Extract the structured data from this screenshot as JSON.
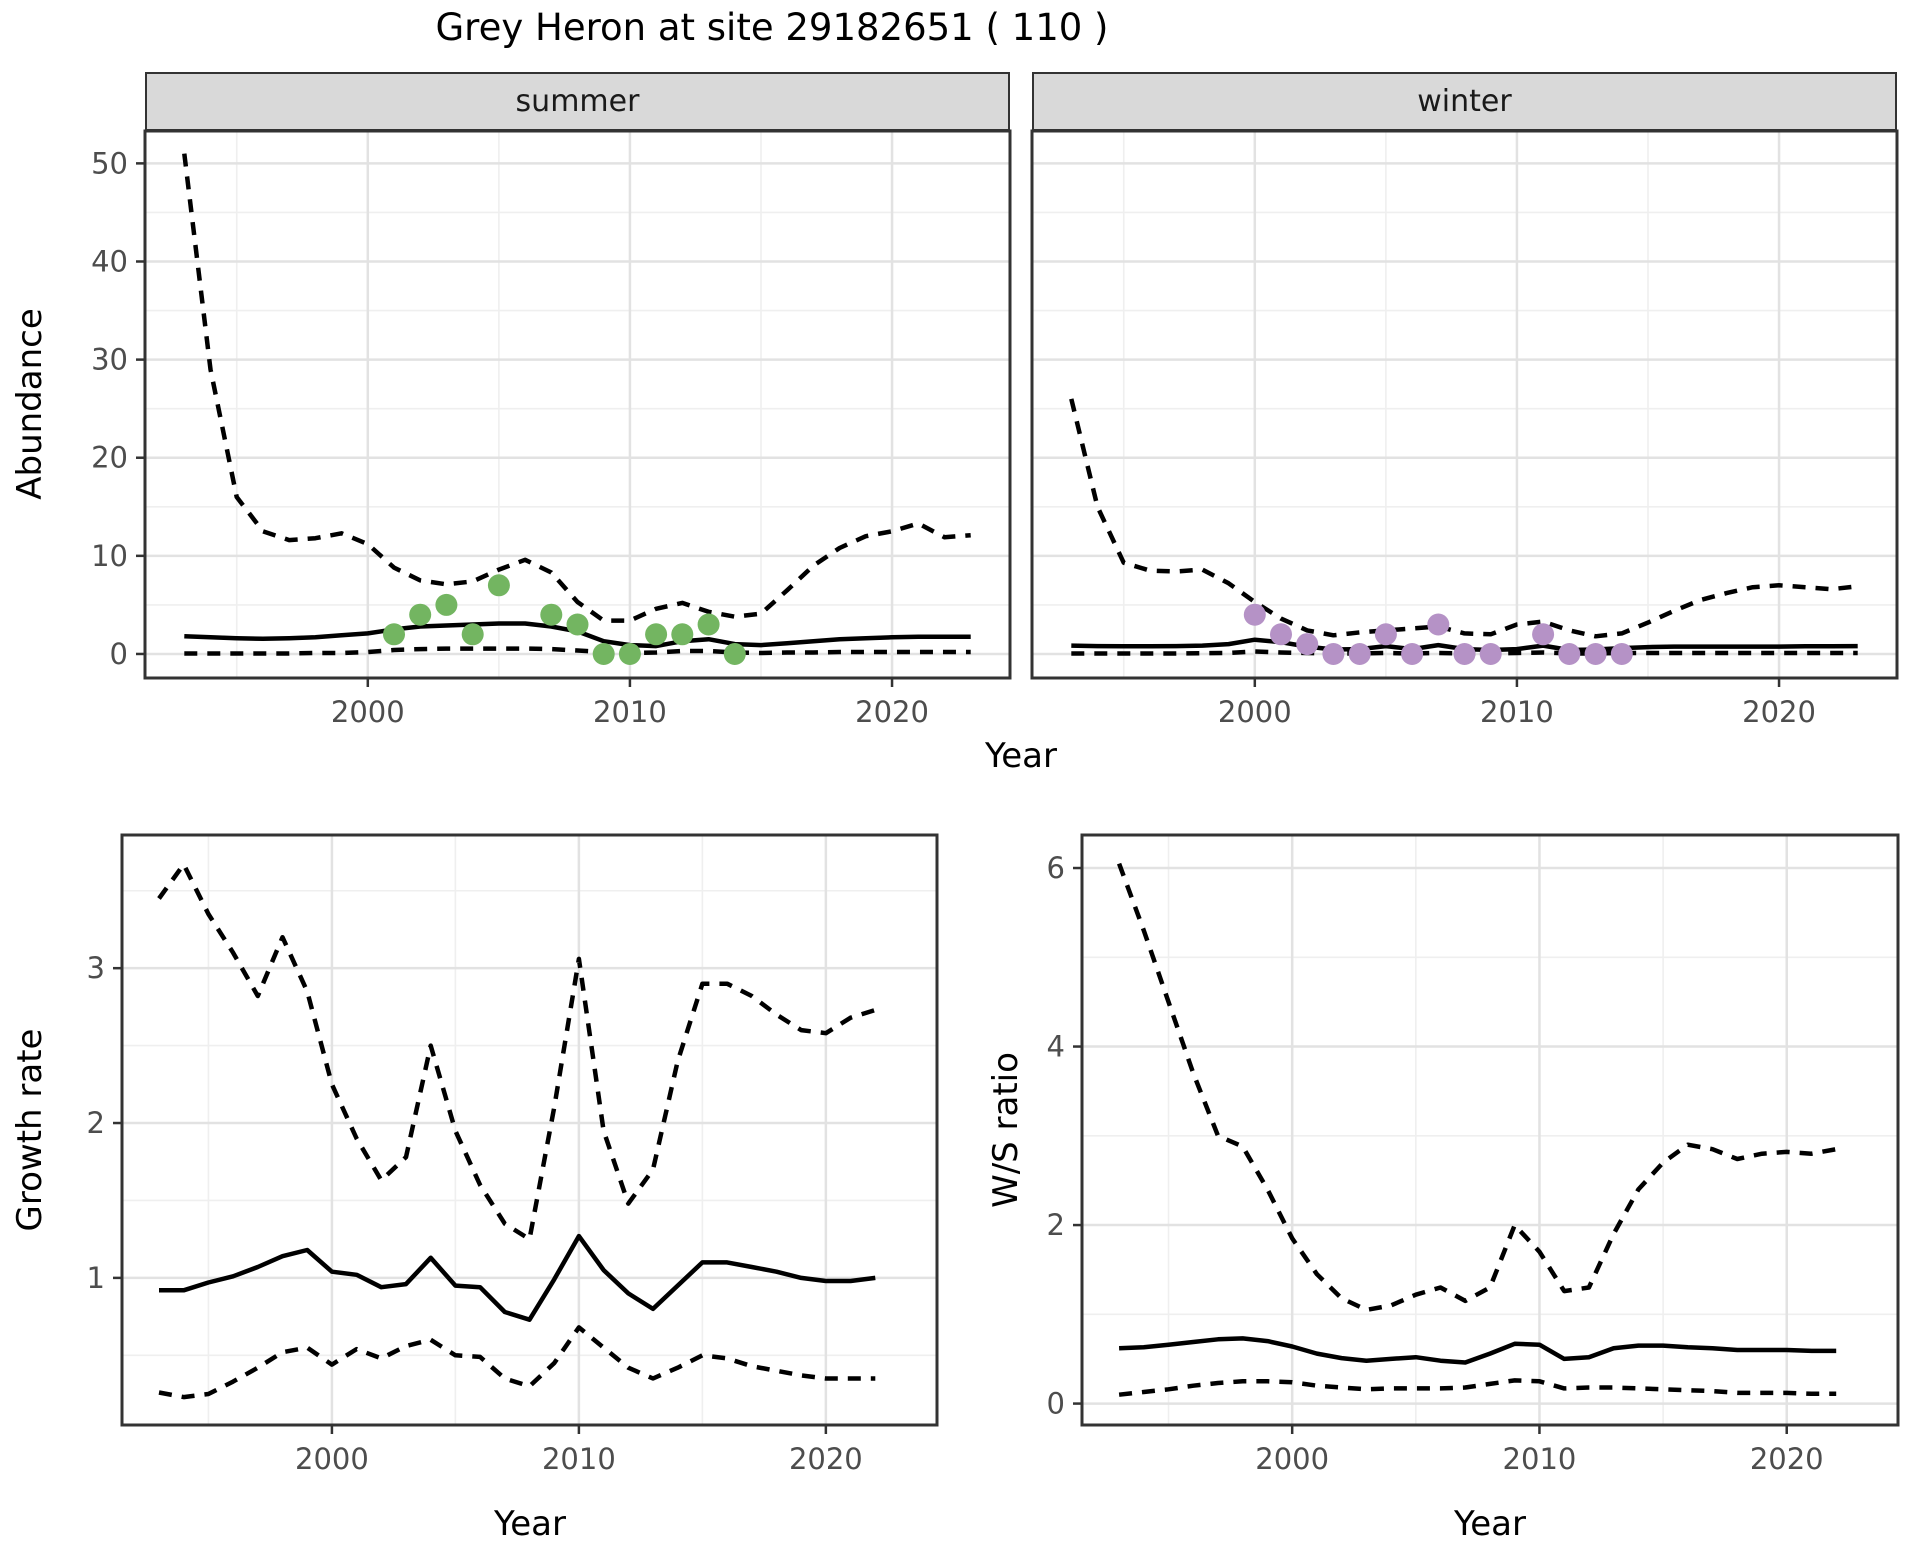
{
  "title": "Grey Heron at site 29182651 ( 110 )",
  "axis_titles": {
    "abundance": "Abundance",
    "year": "Year",
    "growth": "Growth rate",
    "ws": "W/S ratio"
  },
  "colors": {
    "summer_points": "#73b561",
    "winter_points": "#b592c6",
    "line": "#000000",
    "strip_fill": "#d9d9d9",
    "grid_major": "#e2e2e2",
    "grid_minor": "#efefef",
    "border": "#333333",
    "tick_text": "#4d4d4d"
  },
  "chart_data": [
    {
      "id": "abundance-summer",
      "type": "line",
      "facet_label": "summer",
      "xlabel": "Year",
      "ylabel": "Abundance",
      "xlim": [
        1991.5,
        2024.5
      ],
      "ylim": [
        -2.45,
        53.3
      ],
      "xticks": [
        2000,
        2010,
        2020
      ],
      "yticks": [
        0,
        10,
        20,
        30,
        40,
        50
      ],
      "x": [
        1993,
        1994,
        1995,
        1996,
        1997,
        1998,
        1999,
        2000,
        2001,
        2002,
        2003,
        2004,
        2005,
        2006,
        2007,
        2008,
        2009,
        2010,
        2011,
        2012,
        2013,
        2014,
        2015,
        2016,
        2017,
        2018,
        2019,
        2020,
        2021,
        2022,
        2023
      ],
      "series": [
        {
          "name": "upper-95ci",
          "style": "dashed",
          "values": [
            51,
            29,
            16,
            12.5,
            11.6,
            11.8,
            12.3,
            11.2,
            8.8,
            7.5,
            7.1,
            7.4,
            8.6,
            9.6,
            8.3,
            5.3,
            3.4,
            3.4,
            4.6,
            5.2,
            4.3,
            3.8,
            4.1,
            6.5,
            9.0,
            10.8,
            12.0,
            12.5,
            13.3,
            11.9,
            12.1
          ]
        },
        {
          "name": "fitted",
          "style": "solid",
          "values": [
            1.8,
            1.7,
            1.6,
            1.55,
            1.6,
            1.7,
            1.9,
            2.1,
            2.5,
            2.8,
            2.9,
            3.0,
            3.1,
            3.1,
            2.8,
            2.3,
            1.3,
            0.9,
            0.8,
            1.3,
            1.5,
            1.0,
            0.9,
            1.1,
            1.3,
            1.5,
            1.6,
            1.7,
            1.75,
            1.75,
            1.75
          ]
        },
        {
          "name": "lower-95ci",
          "style": "dashed",
          "values": [
            0.05,
            0.05,
            0.05,
            0.05,
            0.05,
            0.1,
            0.1,
            0.2,
            0.4,
            0.5,
            0.55,
            0.55,
            0.55,
            0.55,
            0.5,
            0.35,
            0.2,
            0.1,
            0.15,
            0.3,
            0.3,
            0.15,
            0.1,
            0.15,
            0.15,
            0.2,
            0.2,
            0.2,
            0.2,
            0.2,
            0.2
          ]
        }
      ],
      "points": {
        "name": "observed-counts",
        "color_key": "summer_points",
        "data": [
          [
            2001,
            2
          ],
          [
            2002,
            4
          ],
          [
            2003,
            5
          ],
          [
            2004,
            2
          ],
          [
            2005,
            7
          ],
          [
            2007,
            4
          ],
          [
            2008,
            3
          ],
          [
            2009,
            0
          ],
          [
            2010,
            0
          ],
          [
            2011,
            2
          ],
          [
            2012,
            2
          ],
          [
            2013,
            3
          ],
          [
            2014,
            0
          ]
        ]
      }
    },
    {
      "id": "abundance-winter",
      "type": "line",
      "facet_label": "winter",
      "xlabel": "Year",
      "ylabel": "Abundance",
      "xlim": [
        1991.5,
        2024.5
      ],
      "ylim": [
        -2.45,
        53.3
      ],
      "xticks": [
        2000,
        2010,
        2020
      ],
      "yticks": [
        0,
        10,
        20,
        30,
        40,
        50
      ],
      "x": [
        1993,
        1994,
        1995,
        1996,
        1997,
        1998,
        1999,
        2000,
        2001,
        2002,
        2003,
        2004,
        2005,
        2006,
        2007,
        2008,
        2009,
        2010,
        2011,
        2012,
        2013,
        2014,
        2015,
        2016,
        2017,
        2018,
        2019,
        2020,
        2021,
        2022,
        2023
      ],
      "series": [
        {
          "name": "upper-95ci",
          "style": "dashed",
          "values": [
            26,
            15,
            9.3,
            8.5,
            8.4,
            8.6,
            7.2,
            5.3,
            3.6,
            2.4,
            1.9,
            2.2,
            2.4,
            2.6,
            2.8,
            2.1,
            2.0,
            3.0,
            3.3,
            2.4,
            1.8,
            2.1,
            3.2,
            4.4,
            5.5,
            6.2,
            6.8,
            7.0,
            6.8,
            6.6,
            6.9
          ]
        },
        {
          "name": "fitted",
          "style": "solid",
          "values": [
            0.85,
            0.8,
            0.78,
            0.78,
            0.8,
            0.85,
            1.0,
            1.45,
            1.2,
            0.75,
            0.45,
            0.5,
            0.8,
            0.5,
            0.9,
            0.5,
            0.4,
            0.5,
            0.85,
            0.4,
            0.45,
            0.6,
            0.7,
            0.75,
            0.75,
            0.75,
            0.75,
            0.75,
            0.78,
            0.78,
            0.8
          ]
        },
        {
          "name": "lower-95ci",
          "style": "dashed",
          "values": [
            0.05,
            0.05,
            0.05,
            0.05,
            0.05,
            0.08,
            0.1,
            0.25,
            0.15,
            0.1,
            0.05,
            0.05,
            0.1,
            0.05,
            0.1,
            0.05,
            0.05,
            0.1,
            0.15,
            0.05,
            0.05,
            0.1,
            0.1,
            0.1,
            0.1,
            0.1,
            0.1,
            0.1,
            0.1,
            0.1,
            0.1
          ]
        }
      ],
      "points": {
        "name": "observed-counts",
        "color_key": "winter_points",
        "data": [
          [
            2000,
            4
          ],
          [
            2001,
            2
          ],
          [
            2002,
            1
          ],
          [
            2003,
            0
          ],
          [
            2004,
            0
          ],
          [
            2005,
            2
          ],
          [
            2006,
            0
          ],
          [
            2007,
            3
          ],
          [
            2008,
            0
          ],
          [
            2009,
            0
          ],
          [
            2011,
            2
          ],
          [
            2012,
            0
          ],
          [
            2013,
            0
          ],
          [
            2014,
            0
          ]
        ]
      }
    },
    {
      "id": "growth-rate",
      "type": "line",
      "facet_label": "",
      "xlabel": "Year",
      "ylabel": "Growth rate",
      "xlim": [
        1991.5,
        2024.5
      ],
      "ylim": [
        0.05,
        3.86
      ],
      "xticks": [
        2000,
        2010,
        2020
      ],
      "yticks": [
        1,
        2,
        3
      ],
      "x": [
        1993,
        1994,
        1995,
        1996,
        1997,
        1998,
        1999,
        2000,
        2001,
        2002,
        2003,
        2004,
        2005,
        2006,
        2007,
        2008,
        2009,
        2010,
        2011,
        2012,
        2013,
        2014,
        2015,
        2016,
        2017,
        2018,
        2019,
        2020,
        2021,
        2022
      ],
      "series": [
        {
          "name": "upper-95ci",
          "style": "dashed",
          "values": [
            3.45,
            3.67,
            3.35,
            3.1,
            2.82,
            3.2,
            2.85,
            2.25,
            1.9,
            1.63,
            1.78,
            2.5,
            1.95,
            1.6,
            1.35,
            1.25,
            2.1,
            3.06,
            1.95,
            1.48,
            1.7,
            2.4,
            2.9,
            2.9,
            2.82,
            2.7,
            2.6,
            2.58,
            2.68,
            2.73
          ]
        },
        {
          "name": "fitted",
          "style": "solid",
          "values": [
            0.92,
            0.92,
            0.97,
            1.01,
            1.07,
            1.14,
            1.18,
            1.04,
            1.02,
            0.94,
            0.96,
            1.13,
            0.95,
            0.94,
            0.78,
            0.73,
            0.99,
            1.27,
            1.05,
            0.9,
            0.8,
            0.95,
            1.1,
            1.1,
            1.07,
            1.04,
            1.0,
            0.98,
            0.98,
            1.0
          ]
        },
        {
          "name": "lower-95ci",
          "style": "dashed",
          "values": [
            0.26,
            0.23,
            0.25,
            0.33,
            0.42,
            0.52,
            0.55,
            0.44,
            0.54,
            0.48,
            0.56,
            0.6,
            0.5,
            0.49,
            0.35,
            0.3,
            0.45,
            0.68,
            0.55,
            0.42,
            0.35,
            0.42,
            0.5,
            0.48,
            0.43,
            0.4,
            0.37,
            0.35,
            0.35,
            0.35
          ]
        }
      ],
      "points": null
    },
    {
      "id": "ws-ratio",
      "type": "line",
      "facet_label": "",
      "xlabel": "Year",
      "ylabel": "W/S ratio",
      "xlim": [
        1991.5,
        2024.5
      ],
      "ylim": [
        -0.24,
        6.37
      ],
      "xticks": [
        2000,
        2010,
        2020
      ],
      "yticks": [
        0,
        2,
        4,
        6
      ],
      "x": [
        1993,
        1994,
        1995,
        1996,
        1997,
        1998,
        1999,
        2000,
        2001,
        2002,
        2003,
        2004,
        2005,
        2006,
        2007,
        2008,
        2009,
        2010,
        2011,
        2012,
        2013,
        2014,
        2015,
        2016,
        2017,
        2018,
        2019,
        2020,
        2021,
        2022
      ],
      "series": [
        {
          "name": "upper-95ci",
          "style": "dashed",
          "values": [
            6.05,
            5.3,
            4.5,
            3.7,
            3.0,
            2.88,
            2.4,
            1.85,
            1.45,
            1.18,
            1.05,
            1.1,
            1.22,
            1.3,
            1.15,
            1.3,
            2.0,
            1.7,
            1.26,
            1.3,
            1.9,
            2.4,
            2.7,
            2.9,
            2.85,
            2.74,
            2.8,
            2.82,
            2.8,
            2.85
          ]
        },
        {
          "name": "fitted",
          "style": "solid",
          "values": [
            0.62,
            0.63,
            0.66,
            0.69,
            0.72,
            0.73,
            0.7,
            0.64,
            0.56,
            0.51,
            0.48,
            0.5,
            0.52,
            0.48,
            0.46,
            0.56,
            0.67,
            0.66,
            0.5,
            0.52,
            0.62,
            0.65,
            0.65,
            0.63,
            0.62,
            0.6,
            0.6,
            0.6,
            0.59,
            0.59
          ]
        },
        {
          "name": "lower-95ci",
          "style": "dashed",
          "values": [
            0.1,
            0.13,
            0.16,
            0.2,
            0.23,
            0.25,
            0.25,
            0.24,
            0.2,
            0.18,
            0.16,
            0.17,
            0.17,
            0.17,
            0.18,
            0.22,
            0.26,
            0.25,
            0.17,
            0.18,
            0.18,
            0.17,
            0.16,
            0.15,
            0.14,
            0.12,
            0.12,
            0.12,
            0.11,
            0.11
          ]
        }
      ],
      "points": null
    }
  ]
}
